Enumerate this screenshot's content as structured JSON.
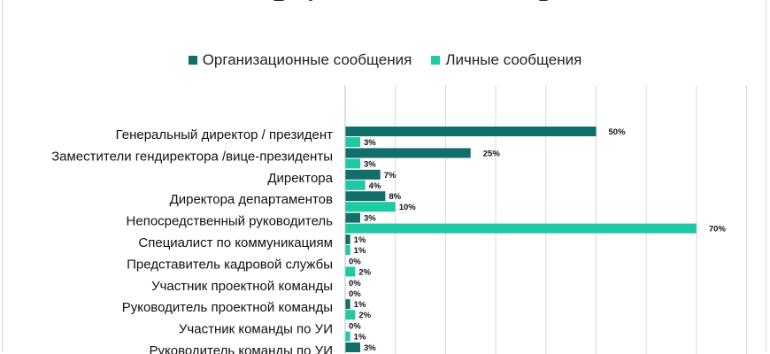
{
  "colors": {
    "org": "#126e6a",
    "personal": "#1ec9a3",
    "grid": "#d9d9d9"
  },
  "chart_data": {
    "type": "bar",
    "orientation": "horizontal",
    "title": "",
    "xlabel": "",
    "ylabel": "",
    "xlim": [
      0,
      80
    ],
    "grid": true,
    "legend": "top-center",
    "categories": [
      "Генеральный директор / президент",
      "Заместители гендиректора /вице-президенты",
      "Директора",
      "Директора департаментов",
      "Непосредственный руководитель",
      "Специалист по коммуникациям",
      "Представитель кадровой службы",
      "Участник проектной команды",
      "Руководитель проектной команды",
      "Участник команды по УИ",
      "Руководитель команды по УИ"
    ],
    "series": [
      {
        "name": "Организационные сообщения",
        "values": [
          50,
          25,
          7,
          8,
          3,
          1,
          0,
          0,
          1,
          0,
          3
        ],
        "labels": [
          "50%",
          "25%",
          "7%",
          "8%",
          "3%",
          "1%",
          "0%",
          "0%",
          "1%",
          "0%",
          "3%"
        ]
      },
      {
        "name": "Личные сообщения",
        "values": [
          3,
          3,
          4,
          10,
          70,
          1,
          2,
          0,
          2,
          1,
          null
        ],
        "labels": [
          "3%",
          "3%",
          "4%",
          "10%",
          "70%",
          "1%",
          "2%",
          "0%",
          "2%",
          "1%",
          ""
        ]
      }
    ]
  }
}
